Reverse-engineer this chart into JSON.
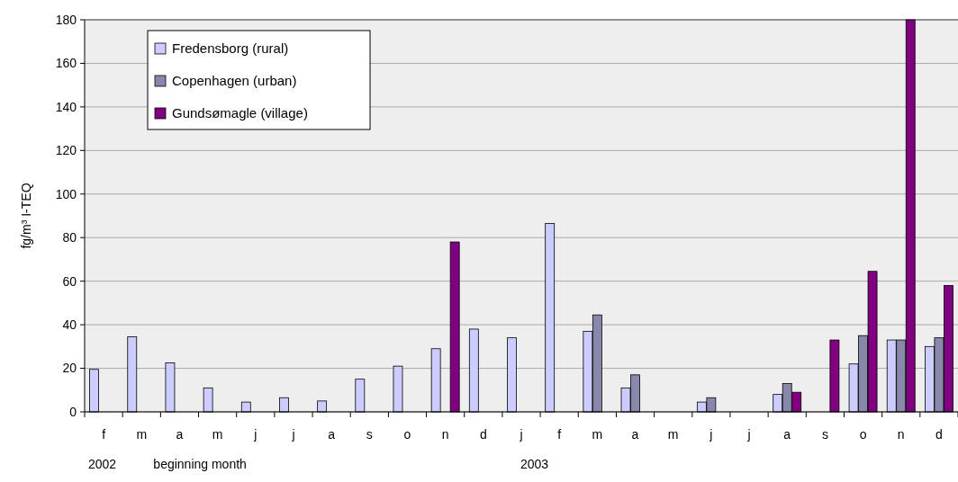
{
  "chart_data": {
    "type": "bar",
    "ylabel": "fg/m³  I-TEQ",
    "categories": [
      "f",
      "m",
      "a",
      "m",
      "j",
      "j",
      "a",
      "s",
      "o",
      "n",
      "d",
      "j",
      "f",
      "m",
      "a",
      "m",
      "j",
      "j",
      "a",
      "s",
      "o",
      "n",
      "d"
    ],
    "series": [
      {
        "name": "Fredensborg (rural)",
        "color": "#ccccff",
        "values": [
          19.5,
          34.5,
          22.5,
          11,
          4.5,
          6.5,
          5,
          15,
          21,
          29,
          38,
          34,
          86.5,
          37,
          11,
          null,
          4.5,
          null,
          8,
          null,
          22,
          33,
          30
        ]
      },
      {
        "name": "Copenhagen (urban)",
        "color": "#8888aa",
        "values": [
          null,
          null,
          null,
          null,
          null,
          null,
          null,
          null,
          null,
          null,
          null,
          null,
          null,
          44.5,
          17,
          null,
          6.5,
          null,
          13,
          null,
          35,
          33,
          34
        ]
      },
      {
        "name": "Gundsømagle (village)",
        "color": "#800080",
        "values": [
          null,
          null,
          null,
          null,
          null,
          null,
          null,
          null,
          null,
          78,
          null,
          null,
          null,
          null,
          null,
          null,
          null,
          null,
          9,
          33,
          64.5,
          180,
          58
        ]
      }
    ],
    "ylim": [
      0,
      180
    ],
    "yticks": [
      0,
      20,
      40,
      60,
      80,
      100,
      120,
      140,
      160,
      180
    ],
    "grid": "y",
    "legend": "top left",
    "annotations": [
      "2002",
      "beginning month",
      "2003"
    ]
  }
}
